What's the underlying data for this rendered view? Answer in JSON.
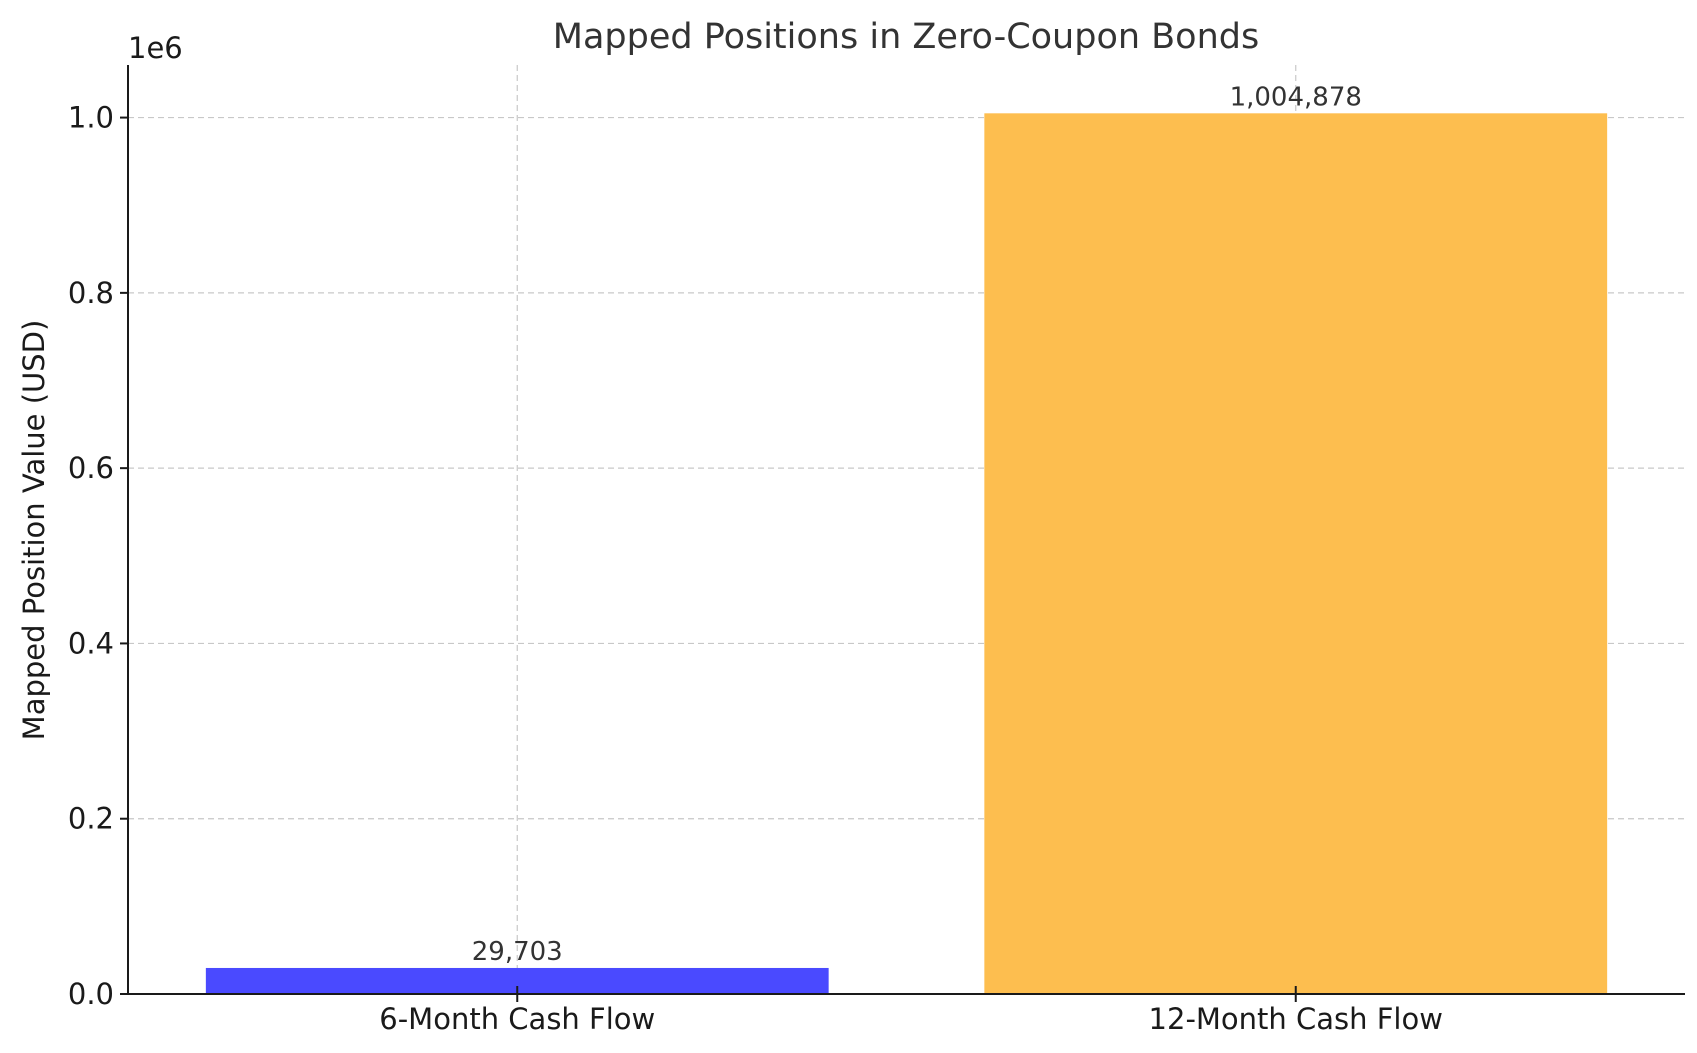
{
  "chart_data": {
    "type": "bar",
    "title": "Mapped Positions in Zero-Coupon Bonds",
    "xlabel": "",
    "ylabel": "Mapped Position Value (USD)",
    "y_offset_label": "1e6",
    "categories": [
      "6-Month Cash Flow",
      "12-Month Cash Flow"
    ],
    "values": [
      29703,
      1004878
    ],
    "value_labels": [
      "29,703",
      "1,004,878"
    ],
    "colors": [
      "#4a4aff",
      "#fdbe4f"
    ],
    "ylim": [
      0,
      1060000
    ],
    "yticks": [
      0,
      200000,
      400000,
      600000,
      800000,
      1000000
    ],
    "ytick_labels": [
      "0.0",
      "0.2",
      "0.4",
      "0.6",
      "0.8",
      "1.0"
    ],
    "grid": true,
    "legend": "none"
  }
}
